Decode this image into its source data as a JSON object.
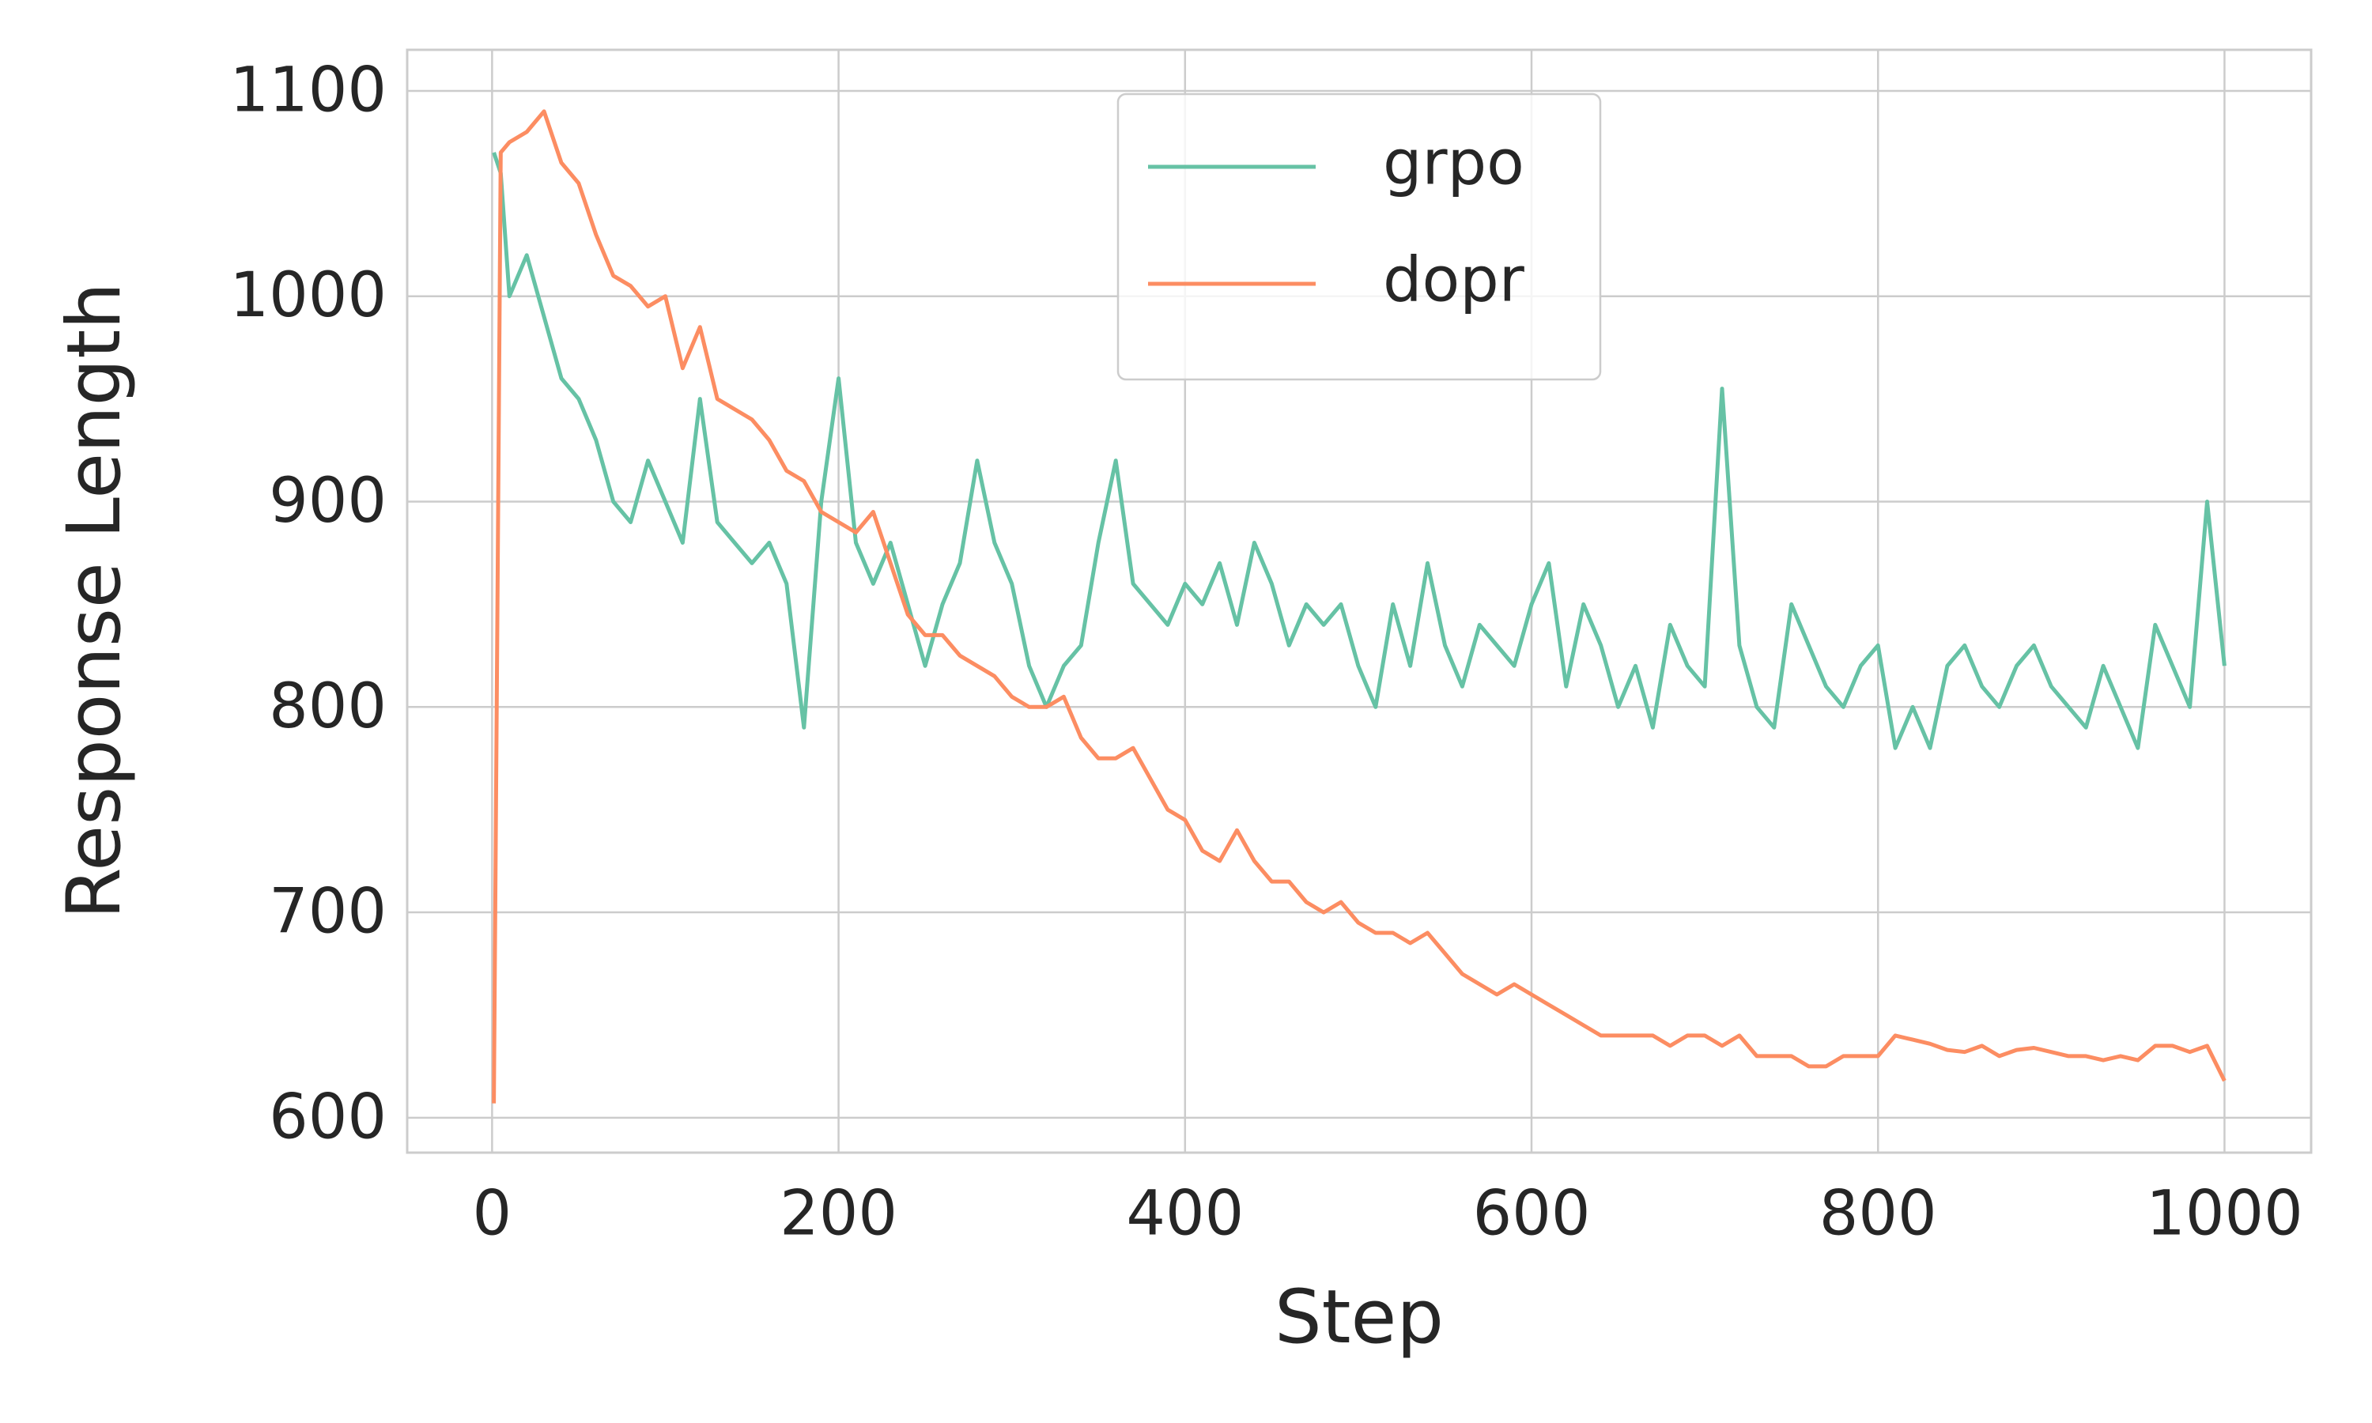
{
  "chart_data": {
    "type": "line",
    "x_label": "Step",
    "y_label": "Response Length",
    "x": [
      1,
      5,
      10,
      20,
      30,
      40,
      50,
      60,
      70,
      80,
      90,
      100,
      110,
      120,
      130,
      140,
      150,
      160,
      170,
      180,
      190,
      200,
      210,
      220,
      230,
      240,
      250,
      260,
      270,
      280,
      290,
      300,
      310,
      320,
      330,
      340,
      350,
      360,
      370,
      380,
      390,
      400,
      410,
      420,
      430,
      440,
      450,
      460,
      470,
      480,
      490,
      500,
      510,
      520,
      530,
      540,
      550,
      560,
      570,
      580,
      590,
      600,
      610,
      620,
      630,
      640,
      650,
      660,
      670,
      680,
      690,
      700,
      710,
      720,
      730,
      740,
      750,
      760,
      770,
      780,
      790,
      800,
      810,
      820,
      830,
      840,
      850,
      860,
      870,
      880,
      890,
      900,
      910,
      920,
      930,
      940,
      950,
      960,
      970,
      980,
      990,
      1000
    ],
    "series": [
      {
        "name": "grpo",
        "color": "#66c2a5",
        "values": [
          1070,
          1060,
          1000,
          1020,
          990,
          960,
          950,
          930,
          900,
          890,
          920,
          900,
          880,
          950,
          890,
          880,
          870,
          880,
          860,
          790,
          900,
          960,
          880,
          860,
          880,
          850,
          820,
          850,
          870,
          920,
          880,
          860,
          820,
          800,
          820,
          830,
          880,
          920,
          860,
          850,
          840,
          860,
          850,
          870,
          840,
          880,
          860,
          830,
          850,
          840,
          850,
          820,
          800,
          850,
          820,
          870,
          830,
          810,
          840,
          830,
          820,
          850,
          870,
          810,
          850,
          830,
          800,
          820,
          790,
          840,
          820,
          810,
          955,
          830,
          800,
          790,
          850,
          830,
          810,
          800,
          820,
          830,
          780,
          800,
          780,
          820,
          830,
          810,
          800,
          820,
          830,
          810,
          800,
          790,
          820,
          800,
          780,
          840,
          820,
          800,
          900,
          820
        ]
      },
      {
        "name": "dopr",
        "color": "#fc8d62",
        "values": [
          607,
          1070,
          1075,
          1080,
          1090,
          1065,
          1055,
          1030,
          1010,
          1005,
          995,
          1000,
          965,
          985,
          950,
          945,
          940,
          930,
          915,
          910,
          895,
          890,
          885,
          895,
          870,
          845,
          835,
          835,
          825,
          820,
          815,
          805,
          800,
          800,
          805,
          785,
          775,
          775,
          780,
          765,
          750,
          745,
          730,
          725,
          740,
          725,
          715,
          715,
          705,
          700,
          705,
          695,
          690,
          690,
          685,
          690,
          680,
          670,
          665,
          660,
          665,
          660,
          655,
          650,
          645,
          640,
          640,
          640,
          640,
          635,
          640,
          640,
          635,
          640,
          630,
          630,
          630,
          625,
          625,
          630,
          630,
          630,
          640,
          638,
          636,
          633,
          632,
          635,
          630,
          633,
          634,
          632,
          630,
          630,
          628,
          630,
          628,
          635,
          635,
          632,
          635,
          618
        ]
      }
    ],
    "xlim": [
      -49,
      1050
    ],
    "ylim": [
      583,
      1120
    ],
    "xticks": [
      0,
      200,
      400,
      600,
      800,
      1000
    ],
    "yticks": [
      600,
      700,
      800,
      900,
      1000,
      1100
    ],
    "grid": true,
    "legend": "upper center"
  }
}
